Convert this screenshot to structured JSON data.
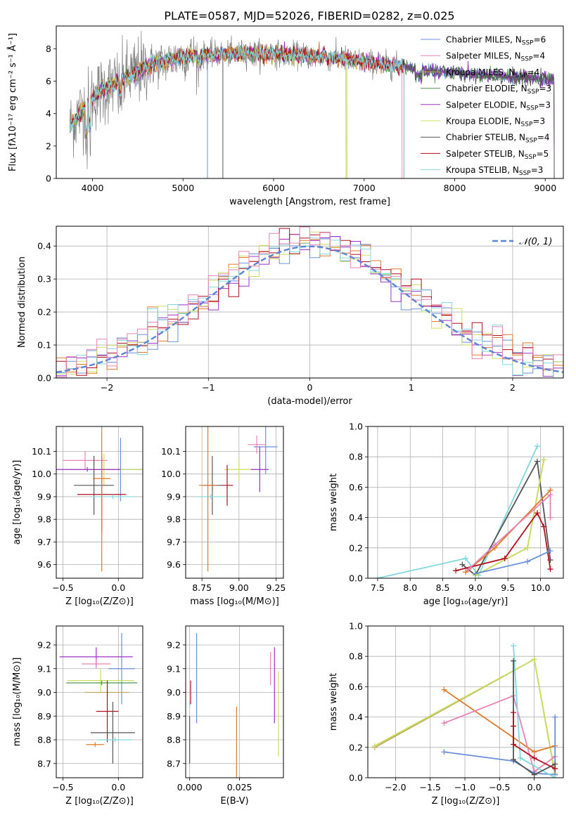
{
  "colors": {
    "chabrier_miles": "#6a8fd8",
    "salpeter_miles": "#e882b4",
    "kroupa_miles": "#bfa85a",
    "chabrier_elodie": "#4e9a4e",
    "salpeter_elodie": "#9b30c8",
    "kroupa_elodie": "#c8e060",
    "chabrier_stelib": "#555555",
    "salpeter_stelib": "#b01020",
    "kroupa_stelib": "#80d8dc",
    "orange": "#e07a2a",
    "observed": "#808080",
    "gaussian": "#5a84d0",
    "grid": "#b0b0b0"
  },
  "chart_data": [
    {
      "type": "line",
      "id": "spectrum",
      "title": "PLATE=0587, MJD=52026, FIBERID=0282, z=0.025",
      "xlabel": "wavelength [Angstrom, rest frame]",
      "ylabel": "Flux [fλ10⁻¹⁷ erg cm⁻² s⁻¹ Å⁻¹]",
      "xlim": [
        3600,
        9200
      ],
      "ylim": [
        0,
        9.4
      ],
      "xticks": [
        "4000",
        "5000",
        "6000",
        "7000",
        "8000",
        "9000"
      ],
      "yticks": [
        "0",
        "2",
        "4",
        "6",
        "8"
      ],
      "grid": false,
      "legend_position": "top-right",
      "legend": [
        {
          "label": "Chabrier MILES, N",
          "sub": "SSP",
          "suffix": "=6"
        },
        {
          "label": "Salpeter MILES, N",
          "sub": "SSP",
          "suffix": "=4"
        },
        {
          "label": "Kroupa MILES, N",
          "sub": "SSP",
          "suffix": "=4"
        },
        {
          "label": "Chabrier ELODIE, N",
          "sub": "SSP",
          "suffix": "=3"
        },
        {
          "label": "Salpeter ELODIE, N",
          "sub": "SSP",
          "suffix": "=3"
        },
        {
          "label": "Kroupa ELODIE, N",
          "sub": "SSP",
          "suffix": "=3"
        },
        {
          "label": "Chabrier STELIB, N",
          "sub": "SSP",
          "suffix": "=4"
        },
        {
          "label": "Salpeter STELIB, N",
          "sub": "SSP",
          "suffix": "=5"
        },
        {
          "label": "Kroupa STELIB, N",
          "sub": "SSP",
          "suffix": "=3"
        }
      ],
      "continuum": {
        "x": [
          3750,
          3800,
          3900,
          4000,
          4100,
          4200,
          4300,
          4400,
          4500,
          4600,
          4800,
          5000,
          5200,
          5500,
          5800,
          6000,
          6300,
          6500,
          6800,
          7000,
          7200,
          7400,
          7600,
          7800,
          8000,
          8500,
          9000,
          9100
        ],
        "y": [
          3.2,
          3.6,
          4.3,
          5.0,
          5.4,
          5.7,
          6.0,
          6.3,
          6.6,
          6.9,
          7.2,
          7.5,
          7.6,
          7.7,
          7.75,
          7.7,
          7.6,
          7.5,
          7.35,
          7.2,
          7.05,
          6.9,
          6.75,
          6.6,
          6.5,
          6.3,
          6.1,
          6.05
        ]
      },
      "model_ranges": [
        [
          3750,
          9100
        ],
        [
          3750,
          7420
        ],
        [
          3750,
          6800
        ],
        [
          3750,
          9100
        ],
        [
          3750,
          9100
        ],
        [
          3750,
          6800
        ],
        [
          3750,
          9100
        ],
        [
          3750,
          7440
        ],
        [
          3750,
          7440
        ]
      ],
      "orange_range": [
        3750,
        7440
      ],
      "observed_range": [
        3750,
        7440
      ]
    },
    {
      "type": "line",
      "id": "residual_hist",
      "title": "",
      "xlabel": "(data-model)/error",
      "ylabel": "Normed distribution",
      "xlim": [
        -2.5,
        2.5
      ],
      "ylim": [
        0,
        0.46
      ],
      "xticks": [
        -2,
        -1,
        0,
        1,
        2
      ],
      "xtick_labels": [
        "−2",
        "−1",
        "0",
        "1",
        "2"
      ],
      "yticks": [
        0.0,
        0.1,
        0.2,
        0.3,
        0.4
      ],
      "ytick_labels": [
        "0.0",
        "0.1",
        "0.2",
        "0.3",
        "0.4"
      ],
      "grid": true,
      "legend_position": "top-right",
      "legend": [
        "𝒩(0, 1)"
      ],
      "bin_width": 0.1
    },
    {
      "type": "scatter",
      "id": "age_vs_Z",
      "xlabel": "Z [log₁₀(Z/Z⊙)]",
      "ylabel": "age  [log₁₀(age/yr)]",
      "xlim": [
        -0.56,
        0.22
      ],
      "ylim": [
        9.54,
        10.21
      ],
      "xticks": [
        -0.5,
        0.0
      ],
      "xtick_labels": [
        "−0.5",
        "0.0"
      ],
      "yticks": [
        9.6,
        9.7,
        9.8,
        9.9,
        10.0,
        10.1
      ],
      "ytick_labels": [
        "9.6",
        "9.7",
        "9.8",
        "9.9",
        "10.0",
        "10.1"
      ],
      "grid": true,
      "points": [
        {
          "c": "chabrier_miles",
          "x": 0.02,
          "y": 10.02,
          "xe": 0.2,
          "ye": 0.14
        },
        {
          "c": "salpeter_miles",
          "x": -0.3,
          "y": 10.06,
          "xe": 0.2,
          "ye": 0.04
        },
        {
          "c": "kroupa_elodie",
          "x": -0.13,
          "y": 10.02,
          "xe": 0.35,
          "ye": 0.07
        },
        {
          "c": "salpeter_elodie",
          "x": -0.28,
          "y": 10.02,
          "xe": 0.3,
          "ye": 0.01
        },
        {
          "c": "chabrier_stelib",
          "x": -0.22,
          "y": 9.95,
          "xe": 0.18,
          "ye": 0.13
        },
        {
          "c": "salpeter_stelib",
          "x": -0.15,
          "y": 9.91,
          "xe": 0.22,
          "ye": 0.17
        },
        {
          "c": "kroupa_stelib",
          "x": -0.05,
          "y": 9.9,
          "xe": 0.2,
          "ye": 0.01
        },
        {
          "c": "orange",
          "x": -0.15,
          "y": 9.98,
          "xe": 0.08,
          "ye": 0.41
        }
      ]
    },
    {
      "type": "scatter",
      "id": "age_vs_mass",
      "xlabel": "mass [log₁₀(M/M⊙)]",
      "ylabel": "",
      "xlim": [
        8.64,
        9.3
      ],
      "ylim": [
        9.54,
        10.21
      ],
      "xticks": [
        8.75,
        9.0,
        9.25
      ],
      "xtick_labels": [
        "8.75",
        "9.00",
        "9.25"
      ],
      "yticks": [
        9.6,
        9.7,
        9.8,
        9.9,
        10.0,
        10.1
      ],
      "ytick_labels": [
        "9.6",
        "9.7",
        "9.8",
        "9.9",
        "10.0",
        "10.1"
      ],
      "grid": true,
      "points": [
        {
          "c": "chabrier_miles",
          "x": 9.18,
          "y": 10.12,
          "xe": 0.08,
          "ye": 0.12
        },
        {
          "c": "salpeter_miles",
          "x": 9.12,
          "y": 10.13,
          "xe": 0.06,
          "ye": 0.04
        },
        {
          "c": "kroupa_elodie",
          "x": 9.0,
          "y": 10.02,
          "xe": 0.1,
          "ye": 0.05
        },
        {
          "c": "salpeter_elodie",
          "x": 9.14,
          "y": 10.02,
          "xe": 0.06,
          "ye": 0.1
        },
        {
          "c": "chabrier_stelib",
          "x": 8.82,
          "y": 9.95,
          "xe": 0.06,
          "ye": 0.13
        },
        {
          "c": "salpeter_stelib",
          "x": 8.92,
          "y": 9.95,
          "xe": 0.04,
          "ye": 0.09
        },
        {
          "c": "kroupa_stelib",
          "x": 8.81,
          "y": 9.9,
          "xe": 0.1,
          "ye": 0.01
        },
        {
          "c": "orange",
          "x": 8.79,
          "y": 9.95,
          "xe": 0.06,
          "ye": 0.38
        }
      ]
    },
    {
      "type": "line",
      "id": "massweight_vs_age",
      "xlabel": "age  [log₁₀(age/yr)]",
      "ylabel": "mass weight",
      "xlim": [
        7.35,
        10.35
      ],
      "ylim": [
        0,
        1.0
      ],
      "xticks": [
        7.5,
        8.0,
        8.5,
        9.0,
        9.5,
        10.0
      ],
      "xtick_labels": [
        "7.5",
        "8.0",
        "8.5",
        "9.0",
        "9.5",
        "10.0"
      ],
      "yticks": [
        0,
        0.2,
        0.4,
        0.6,
        0.8,
        1.0
      ],
      "ytick_labels": [
        "0.0",
        "0.2",
        "0.4",
        "0.6",
        "0.8",
        "1.0"
      ],
      "grid": true,
      "series": [
        {
          "c": "kroupa_stelib",
          "x": [
            7.5,
            8.85,
            9.05,
            9.95
          ],
          "y": [
            0.0,
            0.13,
            0.02,
            0.87
          ]
        },
        {
          "c": "chabrier_stelib",
          "x": [
            8.8,
            9.0,
            9.95,
            10.15
          ],
          "y": [
            0.09,
            0.02,
            0.77,
            0.12
          ]
        },
        {
          "c": "kroupa_miles",
          "x": [
            9.0,
            9.8,
            10.05
          ],
          "y": [
            0.02,
            0.2,
            0.78
          ]
        },
        {
          "c": "kroupa_elodie",
          "x": [
            9.0,
            9.8,
            10.05
          ],
          "y": [
            0.02,
            0.2,
            0.78
          ]
        },
        {
          "c": "orange",
          "x": [
            8.85,
            9.3,
            10.15
          ],
          "y": [
            0.04,
            0.2,
            0.58
          ]
        },
        {
          "c": "salpeter_stelib",
          "x": [
            8.7,
            9.45,
            9.95,
            10.05,
            10.15
          ],
          "y": [
            0.05,
            0.13,
            0.43,
            0.34,
            0.06
          ]
        },
        {
          "c": "salpeter_miles",
          "x": [
            8.9,
            9.3,
            10.15,
            10.15
          ],
          "y": [
            0.06,
            0.22,
            0.55,
            0.4
          ]
        },
        {
          "c": "chabrier_miles",
          "x": [
            9.0,
            9.8,
            10.15
          ],
          "y": [
            0.03,
            0.11,
            0.18
          ]
        }
      ]
    },
    {
      "type": "scatter",
      "id": "mass_vs_Z",
      "xlabel": "Z [log₁₀(Z/Z⊙)]",
      "ylabel": "mass [log₁₀(M/M⊙)]",
      "xlim": [
        -0.56,
        0.22
      ],
      "ylim": [
        8.64,
        9.28
      ],
      "xticks": [
        -0.5,
        0.0
      ],
      "xtick_labels": [
        "−0.5",
        "0.0"
      ],
      "yticks": [
        8.7,
        8.8,
        8.9,
        9.0,
        9.1,
        9.2
      ],
      "ytick_labels": [
        "8.7",
        "8.8",
        "8.9",
        "9.0",
        "9.1",
        "9.2"
      ],
      "grid": true,
      "points": [
        {
          "c": "chabrier_miles",
          "x": 0.03,
          "y": 9.1,
          "xe": 0.12,
          "ye": 0.15
        },
        {
          "c": "salpeter_elodie",
          "x": -0.2,
          "y": 9.15,
          "xe": 0.33,
          "ye": 0.04
        },
        {
          "c": "salpeter_miles",
          "x": -0.2,
          "y": 9.12,
          "xe": 0.13,
          "ye": 0.02
        },
        {
          "c": "kroupa_elodie",
          "x": -0.16,
          "y": 9.05,
          "xe": 0.3,
          "ye": 0.05
        },
        {
          "c": "chabrier_elodie",
          "x": -0.15,
          "y": 9.04,
          "xe": 0.32,
          "ye": 0.01
        },
        {
          "c": "kroupa_miles",
          "x": -0.1,
          "y": 9.0,
          "xe": 0.2,
          "ye": 0.01
        },
        {
          "c": "salpeter_stelib",
          "x": -0.1,
          "y": 8.92,
          "xe": 0.1,
          "ye": 0.13
        },
        {
          "c": "chabrier_stelib",
          "x": -0.05,
          "y": 8.83,
          "xe": 0.2,
          "ye": 0.13
        },
        {
          "c": "kroupa_stelib",
          "x": -0.03,
          "y": 8.8,
          "xe": 0.15,
          "ye": 0.01
        },
        {
          "c": "orange",
          "x": -0.21,
          "y": 8.78,
          "xe": 0.08,
          "ye": 0.01
        }
      ]
    },
    {
      "type": "scatter",
      "id": "mass_vs_EBV",
      "xlabel": "E(B-V)",
      "ylabel": "",
      "xlim": [
        -0.002,
        0.047
      ],
      "ylim": [
        8.64,
        9.28
      ],
      "xticks": [
        0.0,
        0.025
      ],
      "xtick_labels": [
        "0.000",
        "0.025"
      ],
      "yticks": [
        8.7,
        8.8,
        8.9,
        9.0,
        9.1,
        9.2
      ],
      "ytick_labels": [
        "8.7",
        "8.8",
        "8.9",
        "9.0",
        "9.1",
        "9.2"
      ],
      "grid": true,
      "points": [
        {
          "c": "chabrier_miles",
          "x": 0.0035,
          "y": 9.06,
          "xe": 0.0,
          "ye": 0.19
        },
        {
          "c": "salpeter_stelib",
          "x": 0.0005,
          "y": 9.0,
          "xe": 0.0,
          "ye": 0.05
        },
        {
          "c": "chabrier_stelib",
          "x": 0.0,
          "y": 8.8,
          "xe": 0.0,
          "ye": 0.1
        },
        {
          "c": "kroupa_stelib",
          "x": 0.0,
          "y": 8.95,
          "xe": 0.0,
          "ye": 0.01
        },
        {
          "c": "orange",
          "x": 0.0235,
          "y": 8.75,
          "xe": 0.0,
          "ye": 0.19
        },
        {
          "c": "salpeter_miles",
          "x": 0.0405,
          "y": 9.1,
          "xe": 0.0,
          "ye": 0.07
        },
        {
          "c": "salpeter_elodie",
          "x": 0.0425,
          "y": 9.03,
          "xe": 0.0,
          "ye": 0.16
        },
        {
          "c": "kroupa_elodie",
          "x": 0.0445,
          "y": 8.91,
          "xe": 0.0,
          "ye": 0.18
        }
      ]
    },
    {
      "type": "line",
      "id": "massweight_vs_Z",
      "xlabel": "Z [log₁₀(Z/Z⊙)]",
      "ylabel": "mass weight",
      "xlim": [
        -2.4,
        0.42
      ],
      "ylim": [
        0,
        1.0
      ],
      "xticks": [
        -2.0,
        -1.5,
        -1.0,
        -0.5,
        0.0
      ],
      "xtick_labels": [
        "−2.0",
        "−1.5",
        "−1.0",
        "−0.5",
        "0.0"
      ],
      "yticks": [
        0,
        0.2,
        0.4,
        0.6,
        0.8,
        1.0
      ],
      "ytick_labels": [
        "0.0",
        "0.2",
        "0.4",
        "0.6",
        "0.8",
        "1.0"
      ],
      "grid": true,
      "series": [
        {
          "c": "kroupa_miles",
          "x": [
            -2.3,
            0.0,
            0.3
          ],
          "y": [
            0.2,
            0.78,
            0.02
          ]
        },
        {
          "c": "kroupa_elodie",
          "x": [
            -2.3,
            0.0,
            0.3
          ],
          "y": [
            0.21,
            0.78,
            0.03
          ]
        },
        {
          "c": "orange",
          "x": [
            -1.3,
            0.0,
            0.3
          ],
          "y": [
            0.58,
            0.17,
            0.21
          ]
        },
        {
          "c": "salpeter_miles",
          "x": [
            -1.3,
            -0.3,
            0.0,
            0.3
          ],
          "y": [
            0.36,
            0.54,
            0.04,
            0.14
          ]
        },
        {
          "c": "chabrier_miles",
          "x": [
            -1.3,
            -0.3,
            0.0,
            0.3,
            0.3
          ],
          "y": [
            0.17,
            0.11,
            0.03,
            0.02,
            0.4
          ]
        },
        {
          "c": "kroupa_stelib",
          "x": [
            -0.3,
            -0.2,
            0.3
          ],
          "y": [
            0.87,
            0.13,
            0.0
          ]
        },
        {
          "c": "chabrier_stelib",
          "x": [
            -0.3,
            -0.3,
            0.0,
            0.3
          ],
          "y": [
            0.77,
            0.12,
            0.02,
            0.09
          ]
        },
        {
          "c": "salpeter_stelib",
          "x": [
            -0.3,
            -0.3,
            -0.3,
            0.0,
            0.3
          ],
          "y": [
            0.43,
            0.34,
            0.22,
            0.13,
            0.06
          ]
        }
      ]
    }
  ]
}
